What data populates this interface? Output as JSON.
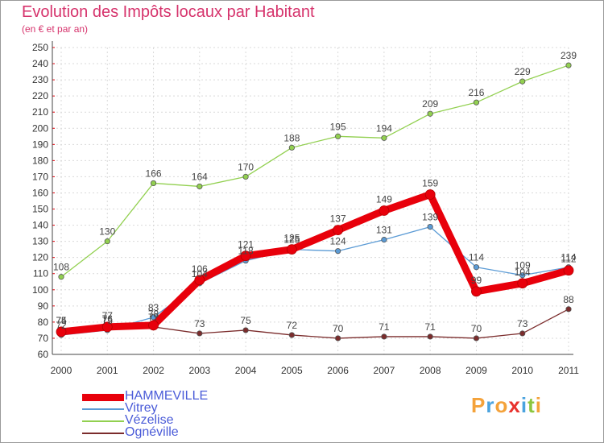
{
  "header": {
    "title": "Evolution des Impôts locaux par Habitant",
    "subtitle": "(en € et par an)"
  },
  "chart_data": {
    "type": "line",
    "title": "Evolution des Impôts locaux par Habitant",
    "subtitle": "(en € et par an)",
    "xlabel": "",
    "ylabel": "",
    "categories": [
      "2000",
      "2001",
      "2002",
      "2003",
      "2004",
      "2005",
      "2006",
      "2007",
      "2008",
      "2009",
      "2010",
      "2011"
    ],
    "ylim": [
      60,
      250
    ],
    "ytick_step": 10,
    "grid": true,
    "legend_position": "bottom-left",
    "series": [
      {
        "name": "HAMMEVILLE",
        "color": "#e8000b",
        "emphasis": true,
        "values": [
          74,
          77,
          78,
          106,
          121,
          125,
          137,
          149,
          159,
          99,
          104,
          112
        ]
      },
      {
        "name": "Vitrey",
        "color": "#5b9bd5",
        "emphasis": false,
        "values": [
          72,
          75,
          83,
          104,
          118,
          125,
          124,
          131,
          139,
          114,
          109,
          114
        ]
      },
      {
        "name": "Vézelise",
        "color": "#92d050",
        "emphasis": false,
        "values": [
          108,
          130,
          166,
          164,
          170,
          188,
          195,
          194,
          209,
          216,
          229,
          239
        ]
      },
      {
        "name": "Ognéville",
        "color": "#7b2c2c",
        "emphasis": false,
        "values": [
          75,
          76,
          77,
          73,
          75,
          72,
          70,
          71,
          71,
          70,
          73,
          88
        ]
      }
    ]
  },
  "logo": {
    "letters": [
      "P",
      "r",
      "o",
      "x",
      "i",
      "t",
      "i"
    ],
    "colors": [
      "#f4a23a",
      "#4aa3df",
      "#f4a23a",
      "#e8322d",
      "#4aa3df",
      "#8cc63f",
      "#f4a23a"
    ]
  }
}
